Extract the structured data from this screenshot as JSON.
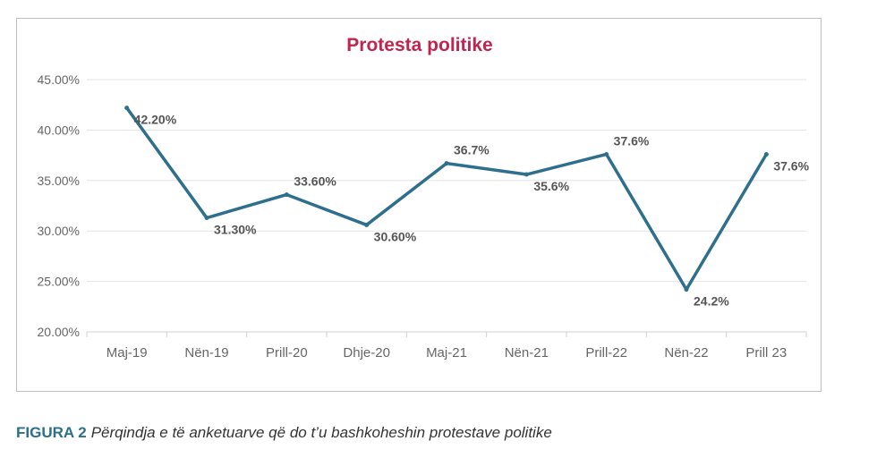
{
  "chart_data": {
    "type": "line",
    "title": "Protesta politike",
    "categories": [
      "Maj-19",
      "Nën-19",
      "Prill-20",
      "Dhje-20",
      "Maj-21",
      "Nën-21",
      "Prill-22",
      "Nën-22",
      "Prill 23"
    ],
    "values": [
      42.2,
      31.3,
      33.6,
      30.6,
      36.7,
      35.6,
      37.6,
      24.2,
      37.6
    ],
    "data_labels": [
      "42.20%",
      "31.30%",
      "33.60%",
      "30.60%",
      "36.7%",
      "35.6%",
      "37.6%",
      "24.2%",
      "37.6%"
    ],
    "ylim": [
      20,
      45
    ],
    "yticks": [
      20,
      25,
      30,
      35,
      40,
      45
    ],
    "ytick_labels": [
      "20.00%",
      "25.00%",
      "30.00%",
      "35.00%",
      "40.00%",
      "45.00%"
    ],
    "xlabel": "",
    "ylabel": "",
    "grid": true,
    "legend": "none",
    "colors": {
      "line": "#2e6f8e",
      "title": "#c0254f",
      "grid": "#e3e3e3",
      "tick_text": "#666666",
      "label_text": "#555555"
    }
  },
  "caption": {
    "label": "FIGURA 2",
    "text": "Përqindja e të anketuarve që do t’u bashkoheshin protestave politike"
  }
}
